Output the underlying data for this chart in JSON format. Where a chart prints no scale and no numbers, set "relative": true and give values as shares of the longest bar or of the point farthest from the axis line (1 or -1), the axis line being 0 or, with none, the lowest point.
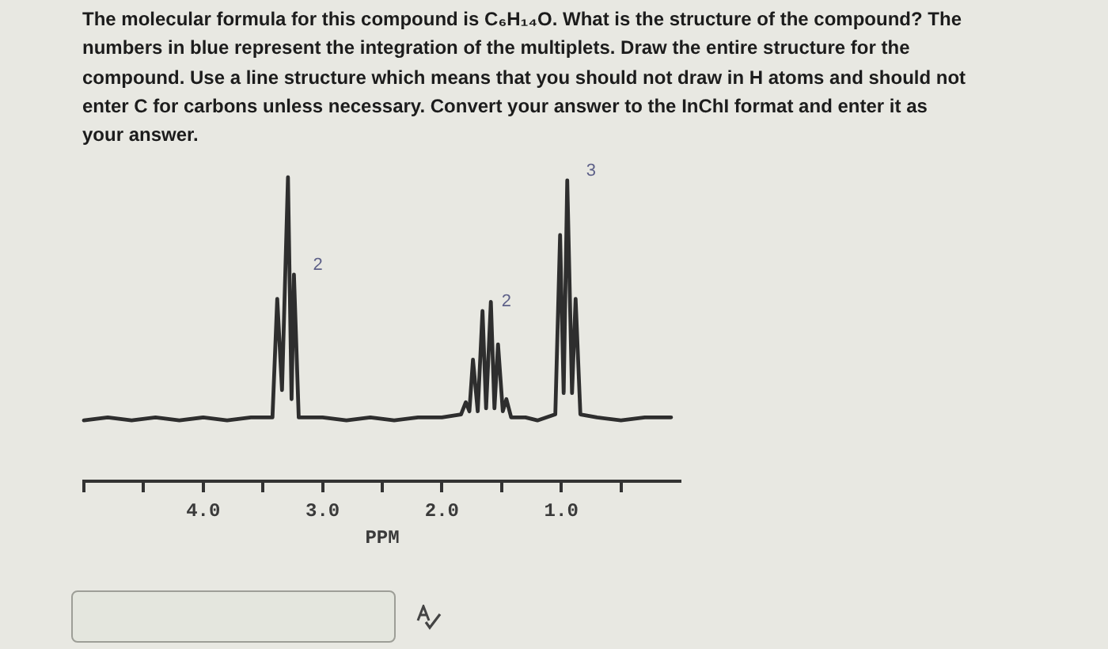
{
  "chart_data": {
    "type": "line",
    "title": "The molecular formula for this compound is C₆H₁₄O. What is the structure of the compound? The numbers in blue represent the integration of the multiplets. Draw the entire structure for the compound. Use a line structure which means that you should not draw in H atoms and should not enter C for carbons unless necessary. Convert your answer to the InChI format and enter it as your answer.",
    "xlabel": "PPM",
    "x": [
      5.0,
      4.8,
      4.6,
      4.4,
      4.2,
      4.0,
      3.8,
      3.6,
      3.42,
      3.38,
      3.34,
      3.29,
      3.26,
      3.24,
      3.2,
      3.0,
      2.8,
      2.6,
      2.4,
      2.2,
      2.0,
      1.84,
      1.8,
      1.77,
      1.74,
      1.7,
      1.66,
      1.63,
      1.59,
      1.56,
      1.53,
      1.49,
      1.46,
      1.42,
      1.3,
      1.2,
      1.05,
      1.01,
      0.98,
      0.95,
      0.91,
      0.88,
      0.84,
      0.7,
      0.5,
      0.3,
      0.08
    ],
    "values": [
      0.2,
      0.21,
      0.2,
      0.21,
      0.2,
      0.21,
      0.2,
      0.21,
      0.21,
      0.6,
      0.3,
      1.0,
      0.27,
      0.68,
      0.21,
      0.21,
      0.2,
      0.21,
      0.2,
      0.21,
      0.21,
      0.22,
      0.26,
      0.23,
      0.4,
      0.23,
      0.56,
      0.24,
      0.59,
      0.24,
      0.45,
      0.23,
      0.27,
      0.21,
      0.21,
      0.2,
      0.22,
      0.81,
      0.29,
      0.99,
      0.29,
      0.6,
      0.22,
      0.21,
      0.2,
      0.21,
      0.21
    ],
    "color": "#2e2e2e",
    "relative": true,
    "xlim": [
      5,
      0
    ],
    "xticks": [
      {
        "value": 5,
        "label": null
      },
      {
        "value": 4.5,
        "label": null
      },
      {
        "value": 4,
        "label": "4.0"
      },
      {
        "value": 3.5,
        "label": null
      },
      {
        "value": 3,
        "label": "3.0"
      },
      {
        "value": 2.5,
        "label": null
      },
      {
        "value": 2,
        "label": "2.0"
      },
      {
        "value": 1.5,
        "label": null
      },
      {
        "value": 1,
        "label": "1.0"
      },
      {
        "value": 0.5,
        "label": null
      }
    ],
    "annotations": [
      {
        "text": "2",
        "x": 3.24,
        "y": 0.68
      },
      {
        "text": "2",
        "x": 1.66,
        "y": 0.56
      },
      {
        "text": "3",
        "x": 0.95,
        "y": 0.99
      }
    ],
    "grid": false,
    "legend": false
  }
}
